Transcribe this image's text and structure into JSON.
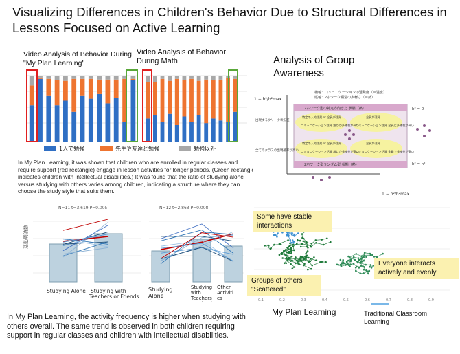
{
  "title": "Visualizing Differences in Children's Behavior Due to Structural Differences in Lessons Focused on Active Learning",
  "left_top": {
    "label_a": "Video Analysis of Behavior During \"My Plan Learning\"",
    "label_b": "Video Analysis of Behavior During Math",
    "legend": [
      {
        "label": "1人で勉強",
        "color": "#2f6fc4"
      },
      {
        "label": "先生や友達と勉強",
        "color": "#ee7430"
      },
      {
        "label": "勉強以外",
        "color": "#a8a8a8"
      }
    ],
    "note": "In My Plan Learning, it was shown that children who are enrolled in regular classes and require support (red rectangle) engage in lesson activities for longer periods. (Green rectangle indicates children with intellectual disabilities.) It was found that the ratio of studying alone versus studying with others varies among children, indicating a structure where they can choose the study style that suits them."
  },
  "chart_data": [
    {
      "type": "bar",
      "title": "Video Analysis of Behavior During \"My Plan Learning\"",
      "series": [
        {
          "name": "1人で勉強",
          "values": [
            0.55,
            0.95,
            0.7,
            0.55,
            0.62,
            0.45,
            0.7,
            0.65,
            0.72,
            0.58,
            0.66,
            0.3,
            0.93
          ]
        },
        {
          "name": "先生や友達と勉強",
          "values": [
            0.3,
            0.02,
            0.25,
            0.38,
            0.3,
            0.5,
            0.25,
            0.3,
            0.22,
            0.36,
            0.28,
            0.65,
            0.02
          ]
        },
        {
          "name": "勉強以外",
          "values": [
            0.15,
            0.03,
            0.05,
            0.07,
            0.08,
            0.05,
            0.05,
            0.05,
            0.06,
            0.06,
            0.06,
            0.05,
            0.05
          ]
        }
      ]
    },
    {
      "type": "bar",
      "title": "Video Analysis of Behavior During Math",
      "series": [
        {
          "name": "1人で勉強",
          "values": [
            0.35,
            0.4,
            0.3,
            0.42,
            0.25,
            0.38,
            0.3,
            0.4,
            0.28,
            0.35,
            0.32,
            0.3,
            0.45
          ]
        },
        {
          "name": "先生や友達と勉強",
          "values": [
            0.55,
            0.5,
            0.65,
            0.5,
            0.7,
            0.55,
            0.65,
            0.52,
            0.66,
            0.58,
            0.62,
            0.66,
            0.5
          ]
        },
        {
          "name": "勉強以外",
          "values": [
            0.1,
            0.1,
            0.05,
            0.08,
            0.05,
            0.07,
            0.05,
            0.08,
            0.06,
            0.07,
            0.06,
            0.04,
            0.05
          ]
        }
      ]
    },
    {
      "type": "bar",
      "stat": "N=11 t=3.619 P=0.005",
      "ylabel": "活動周波数",
      "categories": [
        "Studying Alone",
        "Studying with Teachers or Friends"
      ],
      "values": [
        0.55,
        0.7
      ]
    },
    {
      "type": "bar",
      "stat": "N=12 t=2.863 P=0.008",
      "categories": [
        "Studying Alone",
        "Studying with Teachers or Friends",
        "Other Activities"
      ],
      "values": [
        0.45,
        0.62,
        0.52
      ]
    }
  ],
  "left_bottom": {
    "conclusion": "In My Plan Learning, the activity frequency is higher when studying with others overall. The same trend is observed in both children requiring support in regular classes and children with intellectual disabilities."
  },
  "right": {
    "heading": "Analysis of Group Awareness",
    "diagram": {
      "top_lines": [
        "横軸：コミュニケーションの活発度（＝温度）",
        "縦軸：2ホワーク構造の多様さ（＝熱）"
      ],
      "band_top": "2ホワーク型の特定方向きだ 状態（熱）",
      "band_bottom": "2ホワーク型ランダム型 状態（熱）",
      "cells": [
        "特定の人的活発 or 全員が活発",
        "全員が活発",
        "コミュニケーション活発 誰かが多様性が高い",
        "コミュニケーション活発 全員に多様性が高い",
        "特定の人的活発 or 全員が活発",
        "全員が活発",
        "コミュニケーション活発 誰にか多様性が高い",
        "コミュニケーション活発 全員で多様性が高い"
      ],
      "side_labels": [
        "出現するクリーク状況区",
        "全てのクラスの出現確率が高い"
      ],
      "right_labels": [
        "h² = 0",
        "h² = h²"
      ],
      "y_formula": "1 − h²/h²max"
    },
    "plot": {
      "y_formula": "1 − h²/h²max",
      "x_ticks": [
        "0.1",
        "0.2",
        "0.3",
        "0.4",
        "0.5",
        "0.6",
        "0.7",
        "0.8",
        "0.9"
      ],
      "annotations": {
        "stable": "Some have stable interactions",
        "everyone": "Everyone interacts actively and evenly",
        "scattered": "Groups of others \"Scattered\""
      }
    },
    "legend": {
      "my_plan": "My Plan Learning",
      "traditional": "Traditional Classroom Learning"
    }
  }
}
